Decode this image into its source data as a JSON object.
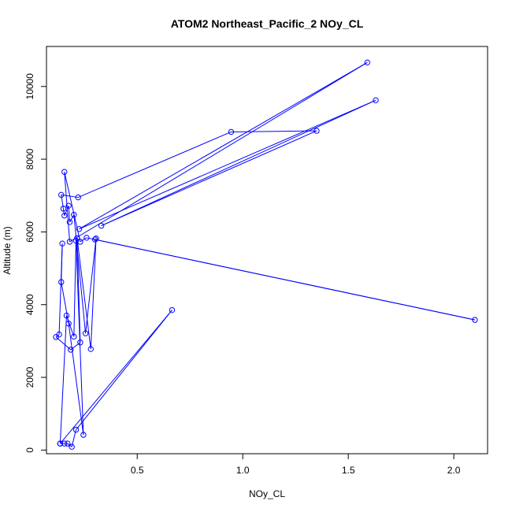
{
  "chart_data": {
    "type": "line",
    "title": "ATOM2 Northeast_Pacific_2 NOy_CL",
    "xlabel": "NOy_CL",
    "ylabel": "Altitude (m)",
    "xlim": [
      0.07,
      2.16
    ],
    "ylim": [
      -100,
      11100
    ],
    "x_ticks": [
      0.5,
      1.0,
      1.5,
      2.0
    ],
    "x_tick_labels": [
      "0.5",
      "1.0",
      "1.5",
      "2.0"
    ],
    "y_ticks": [
      0,
      2000,
      4000,
      6000,
      8000,
      10000
    ],
    "y_tick_labels": [
      "0",
      "2000",
      "4000",
      "6000",
      "8000",
      "10000"
    ],
    "line_color": "#0000ff",
    "marker": "open-circle",
    "grid": false,
    "series": [
      {
        "points": [
          [
            0.135,
            180
          ],
          [
            0.155,
            180
          ],
          [
            0.17,
            180
          ],
          [
            0.19,
            90
          ],
          [
            0.21,
            560
          ],
          [
            0.665,
            3850
          ],
          [
            0.135,
            180
          ],
          [
            0.165,
            3700
          ],
          [
            0.2,
            3120
          ],
          [
            0.21,
            5760
          ],
          [
            0.245,
            420
          ],
          [
            0.175,
            3480
          ],
          [
            0.14,
            4620
          ],
          [
            0.145,
            5680
          ],
          [
            0.13,
            3180
          ],
          [
            0.115,
            3110
          ],
          [
            0.185,
            2760
          ],
          [
            0.23,
            2960
          ],
          [
            0.215,
            5830
          ],
          [
            0.28,
            2780
          ],
          [
            0.305,
            5820
          ],
          [
            0.255,
            3210
          ],
          [
            0.2,
            6470
          ],
          [
            0.18,
            6270
          ],
          [
            0.175,
            6720
          ],
          [
            0.155,
            6450
          ],
          [
            0.15,
            6640
          ],
          [
            0.14,
            7020
          ],
          [
            0.22,
            6950
          ],
          [
            0.945,
            8750
          ],
          [
            1.35,
            8780
          ],
          [
            0.33,
            6170
          ],
          [
            1.63,
            9620
          ],
          [
            0.225,
            6080
          ],
          [
            1.59,
            10660
          ],
          [
            0.18,
            5730
          ],
          [
            0.155,
            7650
          ],
          [
            0.23,
            5730
          ],
          [
            0.26,
            5840
          ],
          [
            2.1,
            3580
          ],
          [
            0.3,
            5790
          ]
        ]
      }
    ]
  }
}
